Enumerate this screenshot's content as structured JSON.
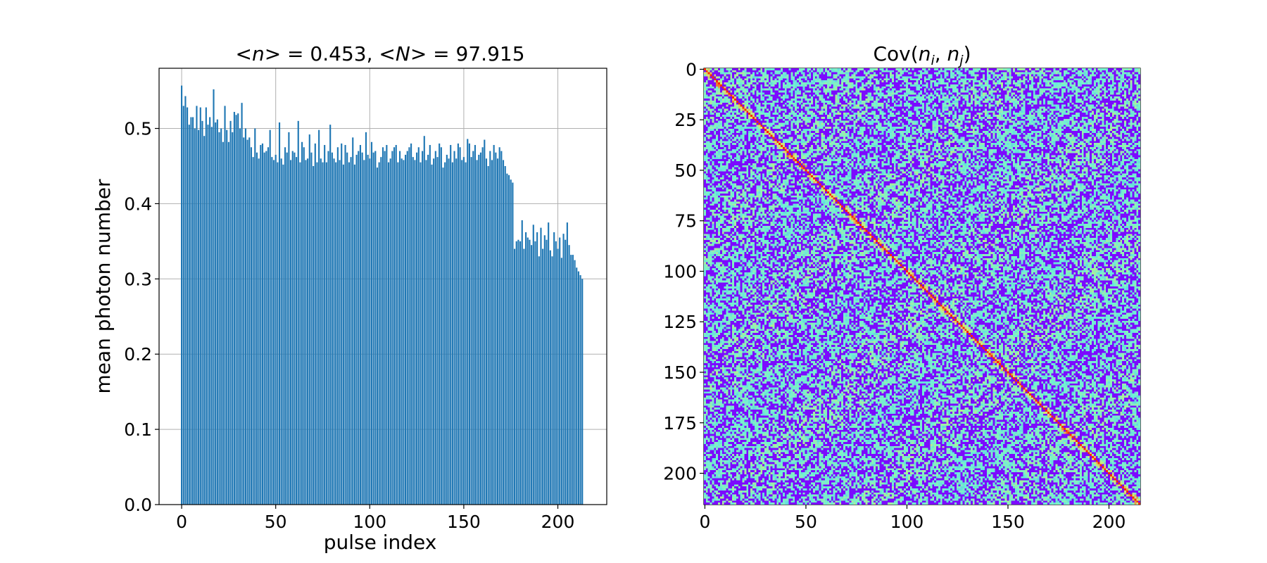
{
  "chart_data": [
    {
      "type": "bar",
      "title_parts": {
        "open1": "<",
        "var1": "n",
        "close1": "> = ",
        "val1": "0.453",
        "sep": ", <",
        "var2": "N",
        "close2": "> = ",
        "val2": "97.915"
      },
      "xlabel": "pulse index",
      "ylabel": "mean photon number",
      "xlim": [
        -12,
        226
      ],
      "ylim": [
        0,
        0.58
      ],
      "xticks": [
        "0",
        "50",
        "100",
        "150",
        "200"
      ],
      "yticks": [
        "0.0",
        "0.1",
        "0.2",
        "0.3",
        "0.4",
        "0.5"
      ],
      "grid": true,
      "bar_color": "#1f77b4",
      "x_start": 0,
      "values": [
        0.557,
        0.53,
        0.543,
        0.528,
        0.505,
        0.515,
        0.515,
        0.5,
        0.53,
        0.498,
        0.528,
        0.51,
        0.49,
        0.528,
        0.505,
        0.515,
        0.502,
        0.552,
        0.508,
        0.512,
        0.495,
        0.5,
        0.482,
        0.53,
        0.498,
        0.482,
        0.51,
        0.495,
        0.522,
        0.518,
        0.52,
        0.5,
        0.534,
        0.488,
        0.5,
        0.485,
        0.488,
        0.475,
        0.462,
        0.5,
        0.468,
        0.46,
        0.478,
        0.48,
        0.468,
        0.47,
        0.475,
        0.498,
        0.462,
        0.458,
        0.465,
        0.455,
        0.508,
        0.46,
        0.452,
        0.475,
        0.468,
        0.495,
        0.458,
        0.47,
        0.468,
        0.462,
        0.51,
        0.455,
        0.482,
        0.475,
        0.458,
        0.46,
        0.492,
        0.468,
        0.45,
        0.48,
        0.455,
        0.498,
        0.46,
        0.455,
        0.478,
        0.455,
        0.47,
        0.505,
        0.468,
        0.46,
        0.455,
        0.475,
        0.458,
        0.48,
        0.452,
        0.478,
        0.468,
        0.455,
        0.462,
        0.488,
        0.452,
        0.465,
        0.47,
        0.478,
        0.468,
        0.458,
        0.495,
        0.465,
        0.46,
        0.482,
        0.468,
        0.47,
        0.448,
        0.455,
        0.462,
        0.475,
        0.47,
        0.478,
        0.455,
        0.46,
        0.47,
        0.475,
        0.478,
        0.455,
        0.47,
        0.46,
        0.458,
        0.465,
        0.47,
        0.475,
        0.48,
        0.462,
        0.458,
        0.468,
        0.475,
        0.455,
        0.47,
        0.49,
        0.458,
        0.465,
        0.478,
        0.452,
        0.46,
        0.47,
        0.462,
        0.48,
        0.475,
        0.448,
        0.455,
        0.465,
        0.46,
        0.478,
        0.455,
        0.47,
        0.46,
        0.48,
        0.475,
        0.458,
        0.462,
        0.455,
        0.486,
        0.48,
        0.462,
        0.47,
        0.478,
        0.458,
        0.465,
        0.468,
        0.475,
        0.485,
        0.46,
        0.45,
        0.47,
        0.458,
        0.478,
        0.468,
        0.46,
        0.475,
        0.47,
        0.458,
        0.45,
        0.44,
        0.438,
        0.432,
        0.428,
        0.34,
        0.35,
        0.352,
        0.35,
        0.378,
        0.34,
        0.362,
        0.355,
        0.352,
        0.345,
        0.372,
        0.35,
        0.362,
        0.33,
        0.368,
        0.34,
        0.358,
        0.352,
        0.375,
        0.338,
        0.33,
        0.362,
        0.35,
        0.34,
        0.355,
        0.328,
        0.36,
        0.352,
        0.375,
        0.345,
        0.332,
        0.332,
        0.325,
        0.315,
        0.31,
        0.305,
        0.3
      ]
    },
    {
      "type": "heatmap",
      "title_parts": {
        "pre": "Cov(",
        "a": "n",
        "sub_a": "i",
        "mid": ", ",
        "b": "n",
        "sub_b": "j",
        "post": ")"
      },
      "size": 216,
      "colormap": "rainbow",
      "xticks": [
        "0",
        "50",
        "100",
        "150",
        "200"
      ],
      "yticks": [
        "0",
        "25",
        "50",
        "75",
        "100",
        "125",
        "150",
        "175",
        "200"
      ]
    }
  ]
}
